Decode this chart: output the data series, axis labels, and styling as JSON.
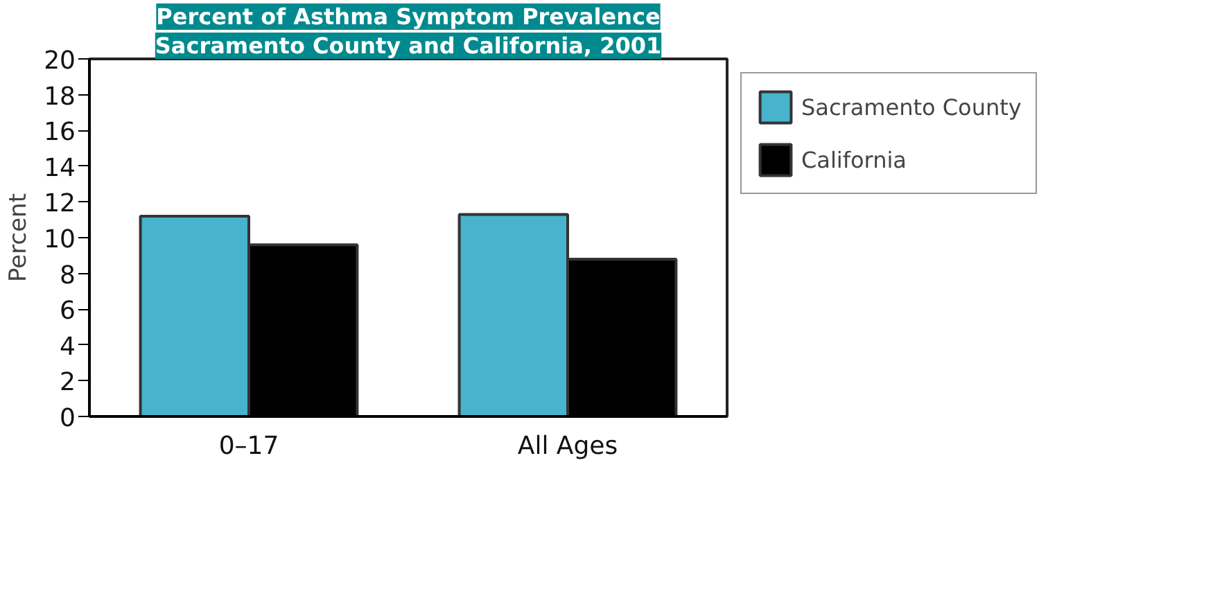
{
  "chart_data": {
    "type": "bar",
    "title": "Percent of Asthma Symptom Prevalence",
    "subtitle": "Sacramento County and California, 2001",
    "ylabel": "Percent",
    "categories": [
      "0–17",
      "All Ages"
    ],
    "series": [
      {
        "name": "Sacramento County",
        "color": "#47b3cc",
        "values": [
          11.2,
          11.3
        ]
      },
      {
        "name": "California",
        "color": "#000000",
        "values": [
          9.6,
          8.8
        ]
      }
    ],
    "ylim": [
      0,
      20
    ],
    "yticks": [
      0,
      2,
      4,
      6,
      8,
      10,
      12,
      14,
      16,
      18,
      20
    ],
    "grid": false,
    "legend": "right"
  }
}
